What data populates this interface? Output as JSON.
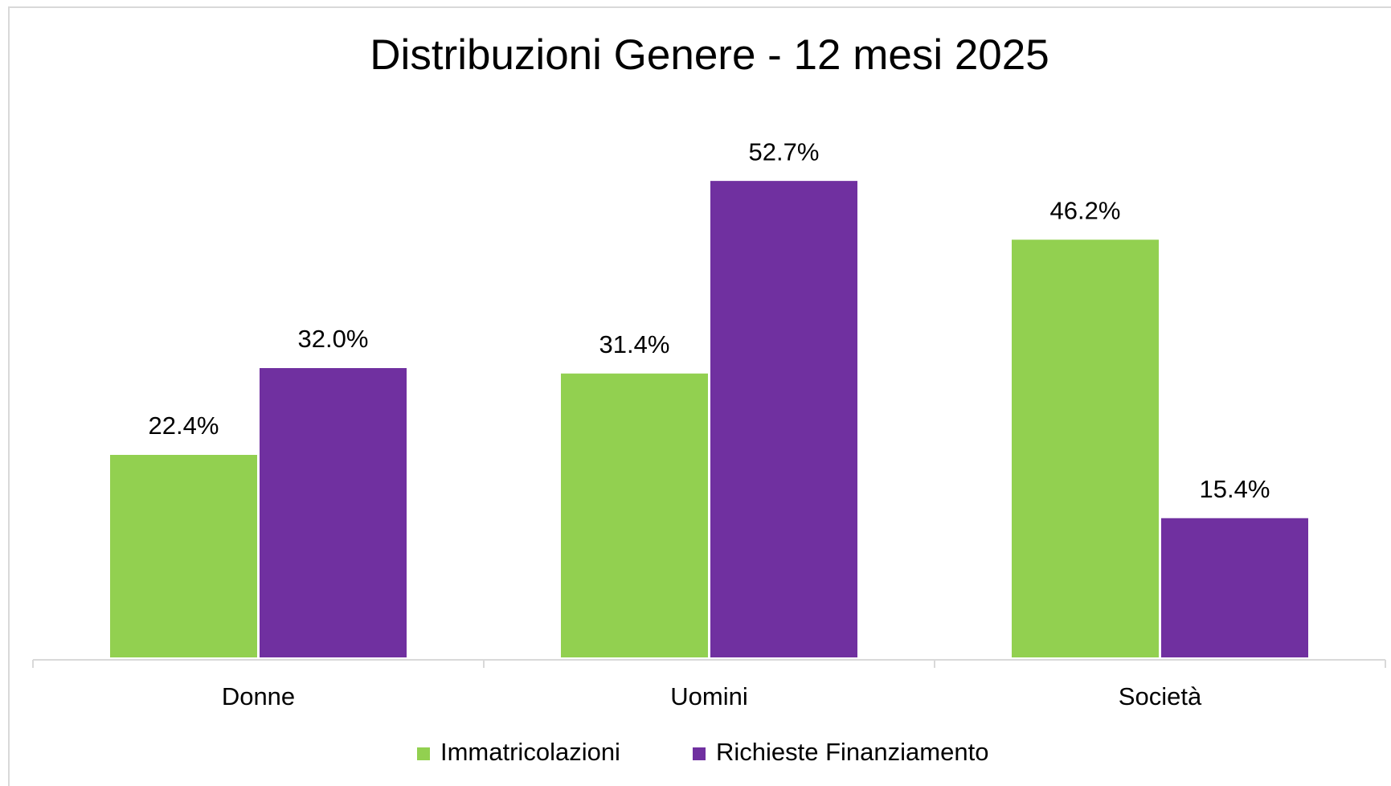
{
  "chart_data": {
    "type": "bar",
    "title": "Distribuzioni Genere - 12 mesi 2025",
    "categories": [
      "Donne",
      "Uomini",
      "Società"
    ],
    "series": [
      {
        "name": "Immatricolazioni",
        "color": "#92d050",
        "values": [
          22.4,
          31.4,
          46.2
        ],
        "value_labels": [
          "22.4%",
          "31.4%",
          "46.2%"
        ]
      },
      {
        "name": "Richieste Finanziamento",
        "color": "#7030a0",
        "values": [
          32.0,
          52.7,
          15.4
        ],
        "value_labels": [
          "32.0%",
          "52.7%",
          "15.4%"
        ]
      }
    ],
    "ylim": [
      0,
      60
    ],
    "legend": "bottom"
  }
}
